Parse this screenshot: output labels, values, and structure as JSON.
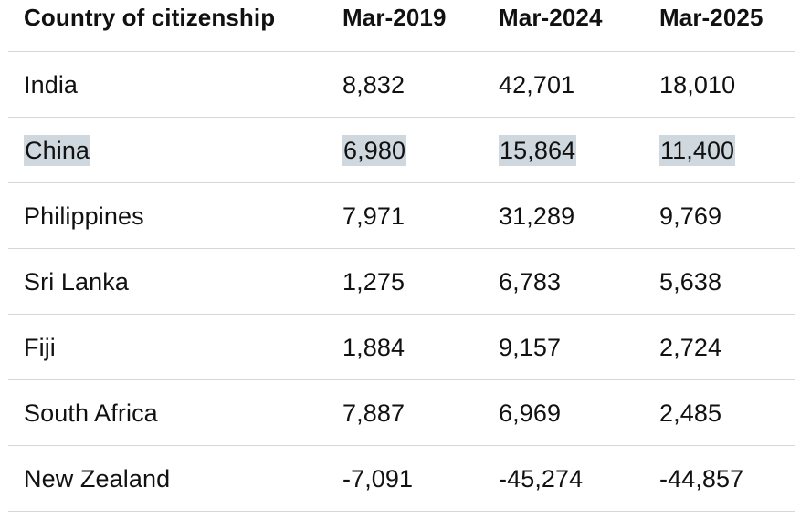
{
  "table": {
    "headers": [
      "Country of citizenship",
      "Mar-2019",
      "Mar-2024",
      "Mar-2025"
    ],
    "rows": [
      [
        "India",
        "8,832",
        "42,701",
        "18,010"
      ],
      [
        "China",
        "6,980",
        "15,864",
        "11,400"
      ],
      [
        "Philippines",
        "7,971",
        "31,289",
        "9,769"
      ],
      [
        "Sri Lanka",
        "1,275",
        "6,783",
        "5,638"
      ],
      [
        "Fiji",
        "1,884",
        "9,157",
        "2,724"
      ],
      [
        "South Africa",
        "7,887",
        "6,969",
        "2,485"
      ],
      [
        "New Zealand",
        "-7,091",
        "-45,274",
        "-44,857"
      ]
    ],
    "highlighted_row": "China",
    "highlight_color": "#cfd8de",
    "border_color": "#d7d7d7"
  }
}
